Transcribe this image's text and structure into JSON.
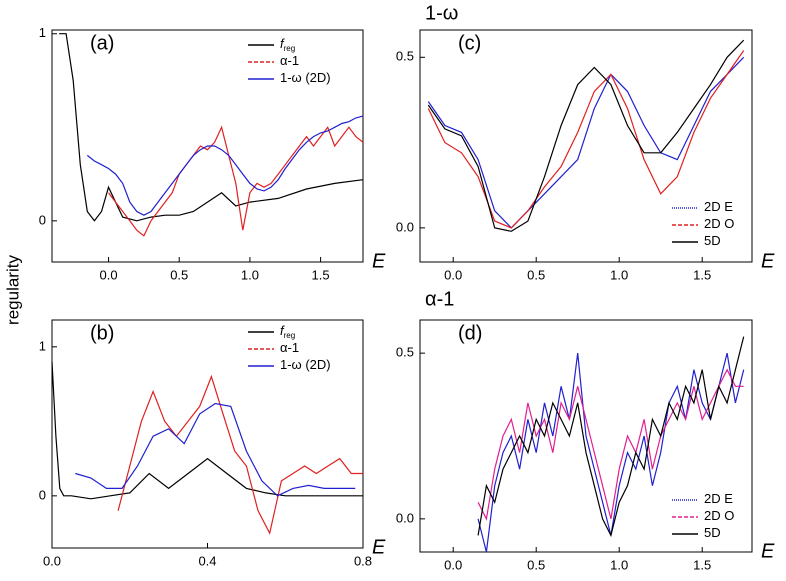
{
  "y_label": "regularity",
  "chart_data": [
    {
      "type": "line",
      "panel_label": "(a)",
      "x_label": "E",
      "xlim": [
        -0.4,
        1.8
      ],
      "ylim": [
        -0.22,
        1.02
      ],
      "xticks": [
        {
          "value": 0,
          "label": "0.0"
        },
        0.5,
        {
          "value": 1,
          "label": "1.0"
        },
        1.5
      ],
      "yticks": [
        0,
        1
      ],
      "series": [
        {
          "name": "f",
          "subscript": "reg",
          "color": "#000000",
          "x": [
            -0.35,
            -0.3,
            -0.25,
            -0.2,
            -0.15,
            -0.1,
            -0.05,
            0,
            0.05,
            0.1,
            0.2,
            0.3,
            0.4,
            0.5,
            0.6,
            0.7,
            0.8,
            0.9,
            1.0,
            1.2,
            1.4,
            1.6,
            1.8
          ],
          "values": [
            1,
            1,
            0.75,
            0.3,
            0.05,
            0.0,
            0.05,
            0.18,
            0.1,
            0.02,
            0.0,
            0.02,
            0.03,
            0.03,
            0.05,
            0.1,
            0.15,
            0.08,
            0.1,
            0.12,
            0.17,
            0.2,
            0.22
          ]
        },
        {
          "name": "α-1",
          "color": "#e02020",
          "x": [
            0,
            0.05,
            0.1,
            0.15,
            0.2,
            0.25,
            0.3,
            0.35,
            0.4,
            0.45,
            0.5,
            0.55,
            0.6,
            0.65,
            0.7,
            0.75,
            0.8,
            0.85,
            0.9,
            0.95,
            1.0,
            1.05,
            1.1,
            1.15,
            1.2,
            1.25,
            1.3,
            1.35,
            1.4,
            1.45,
            1.5,
            1.55,
            1.6,
            1.65,
            1.7,
            1.75,
            1.8
          ],
          "values": [
            0.15,
            0.1,
            0.05,
            0.0,
            -0.05,
            -0.08,
            0.0,
            0.05,
            0.1,
            0.15,
            0.25,
            0.3,
            0.35,
            0.4,
            0.38,
            0.42,
            0.5,
            0.35,
            0.2,
            -0.05,
            0.15,
            0.2,
            0.18,
            0.2,
            0.25,
            0.3,
            0.35,
            0.4,
            0.45,
            0.4,
            0.45,
            0.5,
            0.4,
            0.45,
            0.5,
            0.45,
            0.42
          ]
        },
        {
          "name": "1-ω (2D)",
          "color": "#2020d0",
          "x": [
            -0.15,
            -0.1,
            -0.05,
            0,
            0.05,
            0.1,
            0.15,
            0.2,
            0.25,
            0.3,
            0.35,
            0.4,
            0.45,
            0.5,
            0.55,
            0.6,
            0.65,
            0.7,
            0.75,
            0.8,
            0.85,
            0.9,
            0.95,
            1.0,
            1.05,
            1.1,
            1.15,
            1.2,
            1.25,
            1.3,
            1.35,
            1.4,
            1.45,
            1.5,
            1.55,
            1.6,
            1.65,
            1.7,
            1.75,
            1.8
          ],
          "values": [
            0.35,
            0.32,
            0.3,
            0.28,
            0.25,
            0.2,
            0.1,
            0.05,
            0.03,
            0.05,
            0.1,
            0.15,
            0.2,
            0.25,
            0.3,
            0.35,
            0.38,
            0.4,
            0.4,
            0.38,
            0.35,
            0.3,
            0.25,
            0.2,
            0.17,
            0.16,
            0.18,
            0.22,
            0.28,
            0.33,
            0.38,
            0.42,
            0.45,
            0.47,
            0.48,
            0.5,
            0.52,
            0.53,
            0.55,
            0.56
          ]
        }
      ]
    },
    {
      "type": "line",
      "panel_label": "(b)",
      "x_label": "E",
      "xlim": [
        0,
        0.8
      ],
      "ylim": [
        -0.35,
        1.18
      ],
      "xticks": [
        {
          "value": 0,
          "label": "0.0"
        },
        0.4,
        0.8
      ],
      "yticks": [
        0,
        1
      ],
      "series": [
        {
          "name": "f",
          "subscript": "reg",
          "color": "#000000",
          "x": [
            0,
            0.01,
            0.02,
            0.03,
            0.05,
            0.1,
            0.15,
            0.2,
            0.25,
            0.3,
            0.35,
            0.4,
            0.45,
            0.5,
            0.55,
            0.6,
            0.7,
            0.8
          ],
          "values": [
            0.9,
            0.4,
            0.05,
            0.0,
            0.0,
            -0.02,
            0.0,
            0.02,
            0.15,
            0.05,
            0.15,
            0.25,
            0.15,
            0.05,
            0.02,
            0.0,
            0.0,
            0.0
          ]
        },
        {
          "name": "α-1",
          "color": "#e02020",
          "x": [
            0.17,
            0.2,
            0.23,
            0.26,
            0.29,
            0.32,
            0.35,
            0.38,
            0.41,
            0.44,
            0.47,
            0.5,
            0.53,
            0.56,
            0.59,
            0.62,
            0.65,
            0.68,
            0.71,
            0.74,
            0.77,
            0.8
          ],
          "values": [
            -0.1,
            0.2,
            0.5,
            0.7,
            0.5,
            0.4,
            0.5,
            0.6,
            0.8,
            0.55,
            0.3,
            0.2,
            -0.1,
            -0.25,
            0.1,
            0.15,
            0.2,
            0.15,
            0.2,
            0.25,
            0.15,
            0.15
          ]
        },
        {
          "name": "1-ω (2D)",
          "color": "#2020d0",
          "x": [
            0.06,
            0.1,
            0.14,
            0.18,
            0.22,
            0.26,
            0.3,
            0.34,
            0.38,
            0.42,
            0.46,
            0.5,
            0.54,
            0.58,
            0.62,
            0.66,
            0.7,
            0.74,
            0.78
          ],
          "values": [
            0.15,
            0.12,
            0.05,
            0.05,
            0.2,
            0.4,
            0.45,
            0.35,
            0.55,
            0.62,
            0.6,
            0.3,
            0.1,
            0.0,
            0.05,
            0.07,
            0.05,
            0.05,
            0.05
          ]
        }
      ]
    },
    {
      "type": "line",
      "panel_label": "(c)",
      "x_label": "E",
      "y_label": "1-ω",
      "xlim": [
        -0.2,
        1.8
      ],
      "ylim": [
        -0.1,
        0.58
      ],
      "xticks": [
        {
          "value": 0,
          "label": "0.0"
        },
        0.5,
        {
          "value": 1,
          "label": "1.0"
        },
        1.5
      ],
      "yticks": [
        {
          "value": 0,
          "label": "0.0"
        },
        0.5
      ],
      "x": [
        -0.15,
        -0.05,
        0.05,
        0.15,
        0.25,
        0.35,
        0.45,
        0.55,
        0.65,
        0.75,
        0.85,
        0.95,
        1.05,
        1.15,
        1.25,
        1.35,
        1.45,
        1.55,
        1.65,
        1.75
      ],
      "series": [
        {
          "name": "2D E",
          "color": "#2020d0",
          "values": [
            0.37,
            0.3,
            0.28,
            0.2,
            0.05,
            0.0,
            0.05,
            0.1,
            0.15,
            0.2,
            0.35,
            0.45,
            0.4,
            0.3,
            0.22,
            0.2,
            0.3,
            0.4,
            0.45,
            0.5
          ]
        },
        {
          "name": "2D O",
          "color": "#e02020",
          "values": [
            0.35,
            0.25,
            0.22,
            0.15,
            0.02,
            0.0,
            0.05,
            0.12,
            0.18,
            0.28,
            0.4,
            0.45,
            0.35,
            0.2,
            0.1,
            0.15,
            0.28,
            0.38,
            0.45,
            0.52
          ]
        },
        {
          "name": "5D",
          "color": "#000000",
          "values": [
            0.36,
            0.29,
            0.27,
            0.18,
            0.0,
            -0.01,
            0.02,
            0.15,
            0.3,
            0.42,
            0.47,
            0.42,
            0.3,
            0.22,
            0.22,
            0.28,
            0.35,
            0.42,
            0.5,
            0.55
          ]
        }
      ]
    },
    {
      "type": "line",
      "panel_label": "(d)",
      "x_label": "E",
      "y_label": "α-1",
      "xlim": [
        -0.2,
        1.8
      ],
      "ylim": [
        -0.1,
        0.6
      ],
      "xticks": [
        {
          "value": 0,
          "label": "0.0"
        },
        0.5,
        {
          "value": 1,
          "label": "1.0"
        },
        1.5
      ],
      "yticks": [
        {
          "value": 0,
          "label": "0.0"
        },
        0.5
      ],
      "x": [
        0.15,
        0.2,
        0.25,
        0.3,
        0.35,
        0.4,
        0.45,
        0.5,
        0.55,
        0.6,
        0.65,
        0.7,
        0.75,
        0.8,
        0.85,
        0.9,
        0.95,
        1.0,
        1.05,
        1.1,
        1.15,
        1.2,
        1.25,
        1.3,
        1.35,
        1.4,
        1.45,
        1.5,
        1.55,
        1.6,
        1.65,
        1.7,
        1.75
      ],
      "series": [
        {
          "name": "2D E",
          "color": "#2020d0",
          "values": [
            0.0,
            -0.1,
            0.1,
            0.2,
            0.25,
            0.15,
            0.3,
            0.2,
            0.35,
            0.25,
            0.4,
            0.3,
            0.5,
            0.25,
            0.15,
            0.05,
            -0.05,
            0.1,
            0.2,
            0.15,
            0.25,
            0.1,
            0.2,
            0.35,
            0.4,
            0.3,
            0.45,
            0.35,
            0.3,
            0.4,
            0.5,
            0.35,
            0.45
          ]
        },
        {
          "name": "2D O",
          "color": "#e02090",
          "values": [
            0.05,
            0.0,
            0.15,
            0.25,
            0.3,
            0.2,
            0.35,
            0.25,
            0.3,
            0.2,
            0.35,
            0.3,
            0.4,
            0.3,
            0.2,
            0.1,
            0.0,
            0.15,
            0.25,
            0.2,
            0.3,
            0.15,
            0.25,
            0.3,
            0.35,
            0.3,
            0.4,
            0.3,
            0.35,
            0.4,
            0.45,
            0.4,
            0.4
          ]
        },
        {
          "name": "5D",
          "color": "#000000",
          "values": [
            -0.05,
            0.1,
            0.05,
            0.15,
            0.2,
            0.25,
            0.2,
            0.3,
            0.25,
            0.35,
            0.3,
            0.25,
            0.35,
            0.2,
            0.1,
            0.0,
            -0.05,
            0.05,
            0.1,
            0.2,
            0.15,
            0.3,
            0.25,
            0.35,
            0.3,
            0.4,
            0.35,
            0.45,
            0.3,
            0.4,
            0.35,
            0.45,
            0.55
          ]
        }
      ]
    }
  ]
}
